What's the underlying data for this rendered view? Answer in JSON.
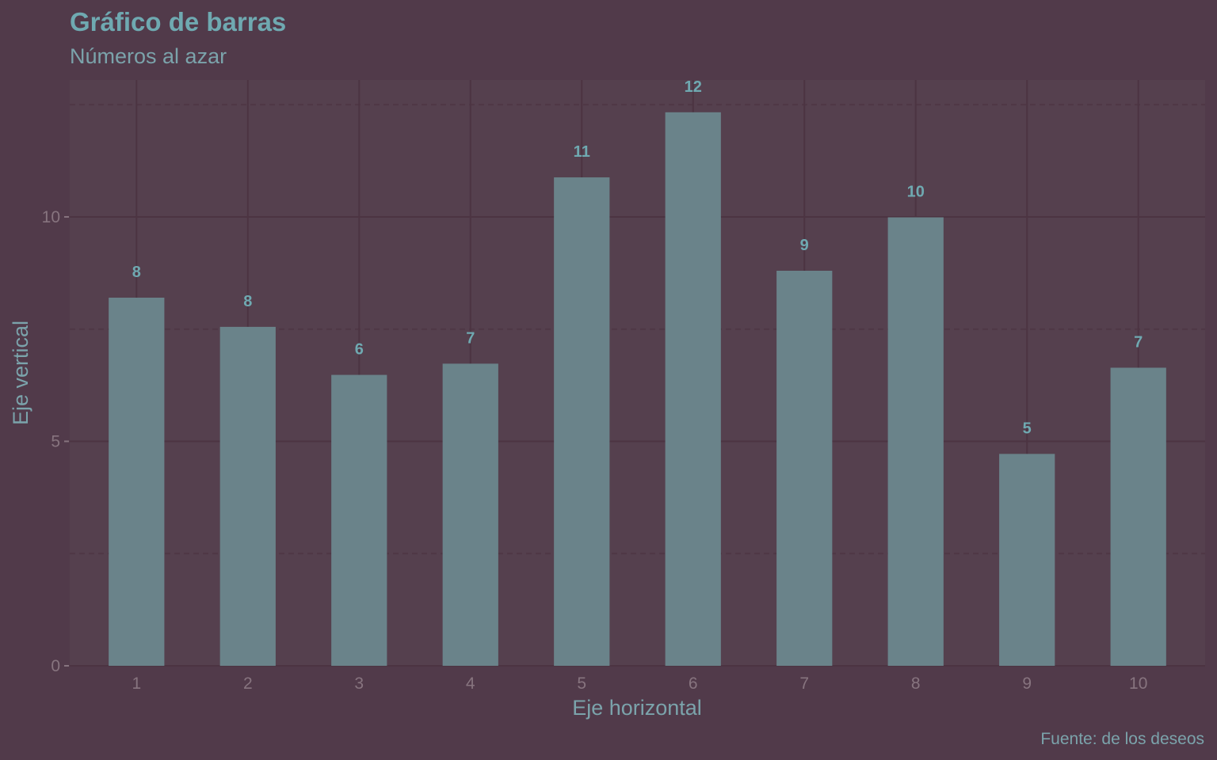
{
  "colors": {
    "background": "#513a4a",
    "panel": "#55404e",
    "bar": "#6a838a",
    "title": "#6fa9b1",
    "subtitle": "#7ba3ab",
    "axis_text": "#87747f",
    "gridline_major": "#4c3442",
    "gridline_minor": "#4f3745"
  },
  "chart_data": {
    "type": "bar",
    "title": "Gráfico de barras",
    "subtitle": "Números al azar",
    "xlabel": "Eje horizontal",
    "ylabel": "Eje vertical",
    "caption": "Fuente: de los deseos",
    "categories": [
      "1",
      "2",
      "3",
      "4",
      "5",
      "6",
      "7",
      "8",
      "9",
      "10"
    ],
    "values": [
      8.2,
      7.55,
      6.48,
      6.73,
      10.88,
      12.33,
      8.8,
      9.99,
      4.72,
      6.64
    ],
    "data_labels": [
      "8",
      "8",
      "6",
      "7",
      "11",
      "12",
      "9",
      "10",
      "5",
      "7"
    ],
    "y_ticks": [
      0,
      5,
      10
    ],
    "ylim": [
      0,
      13.05
    ],
    "grid": true,
    "legend": "none"
  }
}
